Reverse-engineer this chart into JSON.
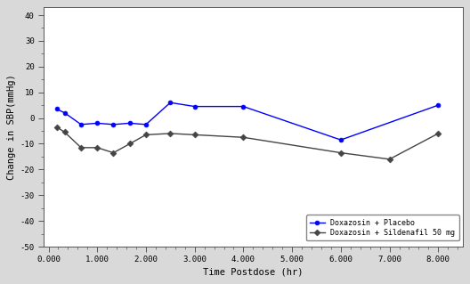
{
  "xlabel": "Time Postdose (hr)",
  "ylabel": "Change in SBP(mmHg)",
  "xlim": [
    -0.1,
    8.5
  ],
  "ylim": [
    -50,
    43
  ],
  "yticks": [
    -50,
    -40,
    -30,
    -20,
    -10,
    0,
    10,
    20,
    30,
    40
  ],
  "xticks": [
    0.0,
    1.0,
    2.0,
    3.0,
    4.0,
    5.0,
    6.0,
    7.0,
    8.0
  ],
  "xtick_labels": [
    "0.000",
    "1.000",
    "2.000",
    "3.000",
    "4.000",
    "5.000",
    "6.000",
    "7.000",
    "8.000"
  ],
  "series": [
    {
      "label": "Doxazosin + Placebo",
      "color": "#0000ff",
      "marker": "o",
      "x": [
        0.167,
        0.333,
        0.667,
        1.0,
        1.333,
        1.667,
        2.0,
        2.5,
        3.0,
        4.0,
        6.0,
        8.0
      ],
      "y": [
        3.5,
        2.0,
        -2.5,
        -2.0,
        -2.5,
        -2.0,
        -2.5,
        6.0,
        4.5,
        4.5,
        -8.5,
        5.0
      ]
    },
    {
      "label": "Doxazosin + Sildenafil 50 mg",
      "color": "#444444",
      "marker": "D",
      "x": [
        0.167,
        0.333,
        0.667,
        1.0,
        1.333,
        1.667,
        2.0,
        2.5,
        3.0,
        4.0,
        6.0,
        7.0,
        8.0
      ],
      "y": [
        -3.5,
        -5.5,
        -11.5,
        -11.5,
        -13.5,
        -10.0,
        -6.5,
        -6.0,
        -6.5,
        -7.5,
        -13.5,
        -16.0,
        -6.0
      ]
    }
  ],
  "background_color": "#d9d9d9",
  "plot_bg_color": "#ffffff",
  "fontsize_ticks": 6.5,
  "fontsize_labels": 7.5,
  "fontsize_legend": 6
}
